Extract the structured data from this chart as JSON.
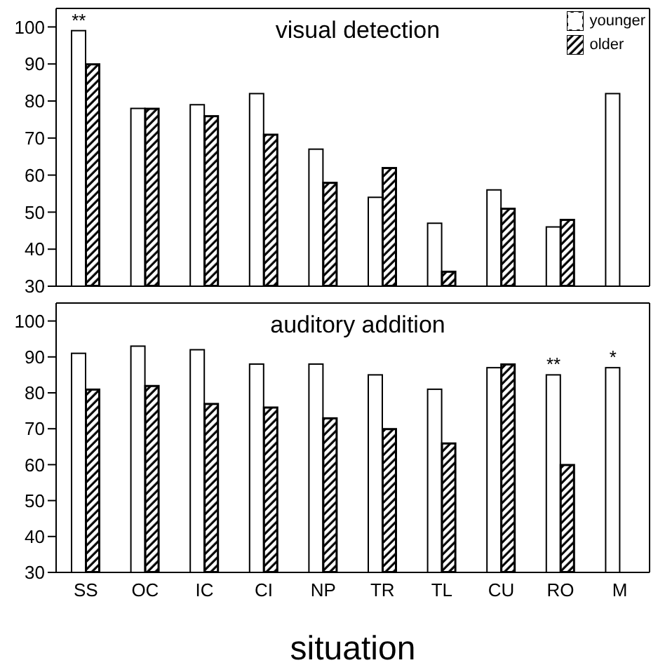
{
  "chart_data": [
    {
      "type": "bar",
      "title": "visual detection",
      "categories": [
        "SS",
        "OC",
        "IC",
        "CI",
        "NP",
        "TR",
        "TL",
        "CU",
        "RO",
        "M"
      ],
      "series": [
        {
          "name": "younger",
          "color": "#ffffff",
          "values": [
            99,
            78,
            79,
            82,
            67,
            54,
            47,
            56,
            46,
            82
          ]
        },
        {
          "name": "older",
          "color": "#000000",
          "values": [
            90,
            78,
            76,
            71,
            58,
            62,
            34,
            51,
            48,
            null
          ]
        }
      ],
      "ylim": [
        30,
        105
      ],
      "yticks": [
        30,
        40,
        50,
        60,
        70,
        80,
        90,
        100
      ],
      "tick_labels": "y",
      "legend": "top right",
      "annotations": [
        {
          "text": "**",
          "x": "SS",
          "y": 99
        }
      ]
    },
    {
      "type": "bar",
      "title": "auditory addition",
      "categories": [
        "SS",
        "OC",
        "IC",
        "CI",
        "NP",
        "TR",
        "TL",
        "CU",
        "RO",
        "M"
      ],
      "xlabel": "situation",
      "series": [
        {
          "color": "#ffffff",
          "values": [
            91,
            93,
            92,
            88,
            88,
            85,
            81,
            87,
            85,
            87
          ]
        },
        {
          "color": "#000000",
          "values": [
            81,
            82,
            77,
            76,
            73,
            70,
            66,
            88,
            60,
            null
          ]
        }
      ],
      "ylim": [
        30,
        105
      ],
      "yticks": [
        30,
        40,
        50,
        60,
        70,
        80,
        90,
        100
      ],
      "annotations": [
        {
          "text": "**",
          "x": "RO",
          "y": 85
        },
        {
          "text": "*",
          "x": "M",
          "y": 87
        }
      ]
    }
  ]
}
